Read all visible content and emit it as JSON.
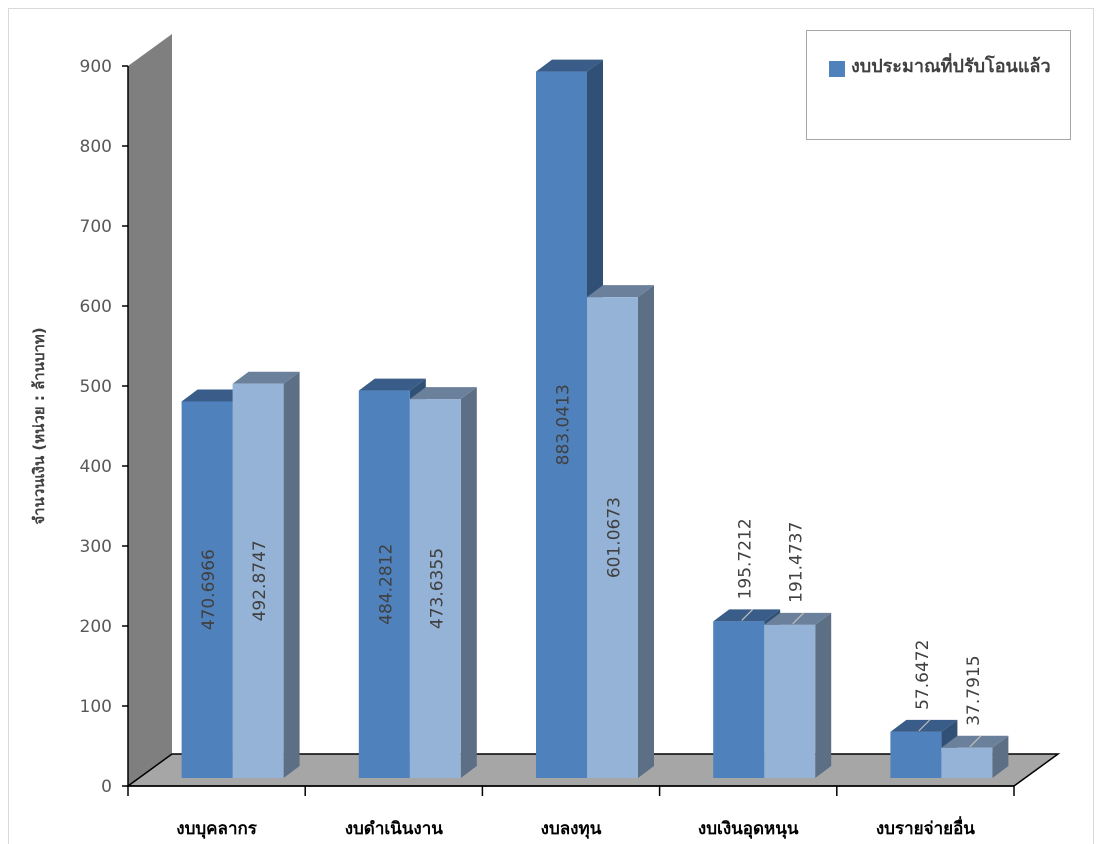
{
  "chart_data": {
    "type": "bar",
    "style": "3d-clustered-column",
    "categories": [
      "งบบุคลากร",
      "งบดำเนินงาน",
      "งบลงทุน",
      "งบเงินอุดหนุน",
      "งบรายจ่ายอื่น"
    ],
    "series": [
      {
        "name": "งบประมาณที่ปรับโอนแล้ว",
        "color": "#4f81bd",
        "values": [
          470.6966,
          484.2812,
          883.0413,
          195.7212,
          57.6472
        ],
        "labels": [
          "470.6966",
          "484.2812",
          "883.0413",
          "195.7212",
          "57.6472"
        ]
      },
      {
        "color": "#95b3d7",
        "values": [
          492.8747,
          473.6355,
          601.0673,
          191.4737,
          37.7915
        ],
        "labels": [
          "492.8747",
          "473.6355",
          "601.0673",
          "191.4737",
          "37.7915"
        ]
      }
    ],
    "ylabel": "จำนวนเงิน (หน่วย : ล้านบาท)",
    "xlabel": "",
    "yticks": [
      "0",
      "100",
      "200",
      "300",
      "400",
      "500",
      "600",
      "700",
      "800",
      "900"
    ],
    "ylim": [
      0,
      900
    ],
    "grid": false,
    "legend_position": "top-right"
  }
}
